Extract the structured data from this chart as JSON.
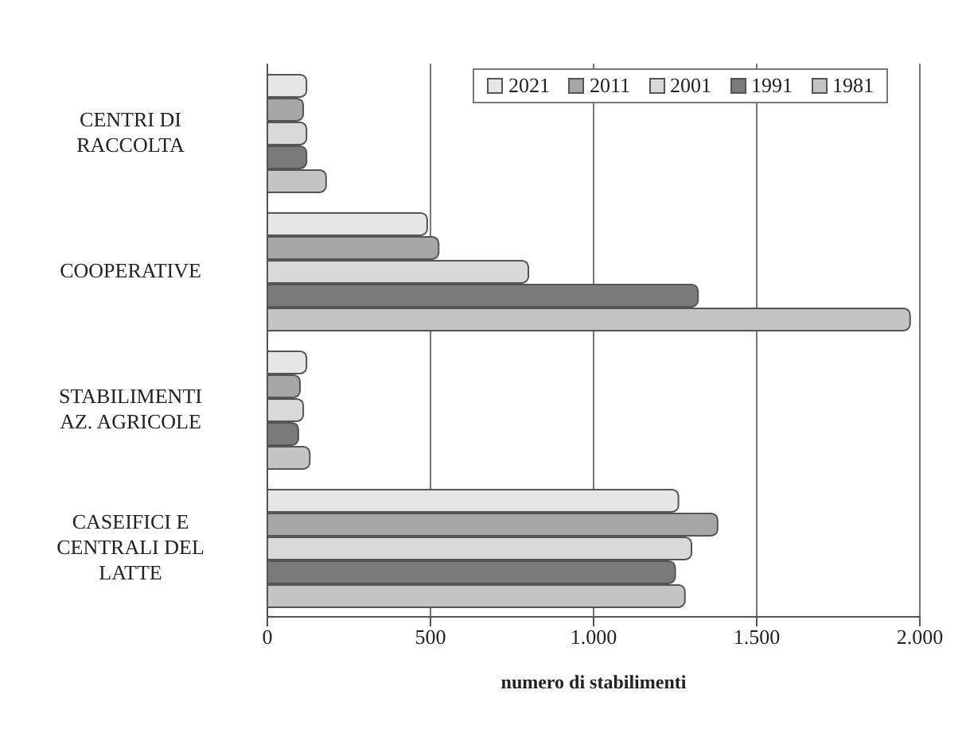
{
  "chart_data": {
    "type": "bar",
    "orientation": "horizontal",
    "xlabel": "numero di stabilimenti",
    "categories": [
      "CENTRI DI RACCOLTA",
      "COOPERATIVE",
      "STABILIMENTI AZ. AGRICOLE",
      "CASEIFICI E CENTRALI DEL LATTE"
    ],
    "series": [
      {
        "name": "2021",
        "color": "#e6e6e6",
        "values": [
          120,
          490,
          120,
          1260
        ]
      },
      {
        "name": "2011",
        "color": "#a6a6a6",
        "values": [
          110,
          525,
          100,
          1380
        ]
      },
      {
        "name": "2001",
        "color": "#d9d9d9",
        "values": [
          120,
          800,
          110,
          1300
        ]
      },
      {
        "name": "1991",
        "color": "#7a7a7a",
        "values": [
          120,
          1320,
          95,
          1250
        ]
      },
      {
        "name": "1981",
        "color": "#c4c4c4",
        "values": [
          180,
          1970,
          130,
          1280
        ]
      }
    ],
    "xlim": [
      0,
      2000
    ],
    "xticks": [
      0,
      500,
      {
        "value": 1000,
        "label": "1.000"
      },
      {
        "value": 1500,
        "label": "1.500"
      },
      {
        "value": 2000,
        "label": "2.000"
      }
    ],
    "grid": "x",
    "legend": "top right"
  }
}
